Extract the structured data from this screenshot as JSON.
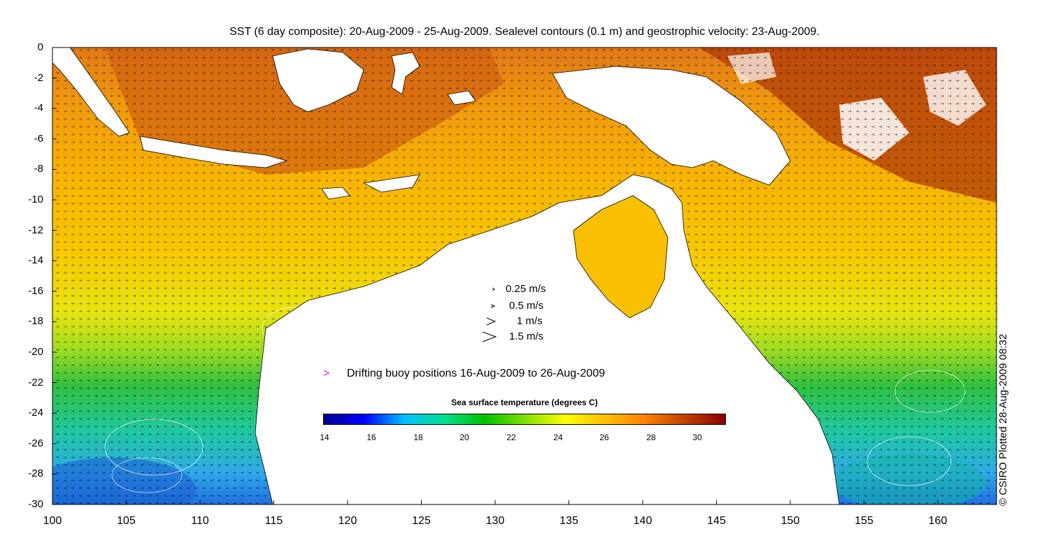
{
  "title": "SST (6 day composite): 20-Aug-2009 - 25-Aug-2009. Sealevel contours (0.1 m) and geostrophic velocity: 23-Aug-2009.",
  "axes": {
    "y_ticks": [
      "0",
      "-2",
      "-4",
      "-6",
      "-8",
      "-10",
      "-12",
      "-14",
      "-16",
      "-18",
      "-20",
      "-22",
      "-24",
      "-26",
      "-28",
      "-30"
    ],
    "x_ticks": [
      "100",
      "105",
      "110",
      "115",
      "120",
      "125",
      "130",
      "135",
      "140",
      "145",
      "150",
      "155",
      "160"
    ],
    "lat_range": [
      -30,
      0
    ],
    "lon_range": [
      100,
      164
    ]
  },
  "velocity_legend": [
    "0.25 m/s",
    "0.5 m/s",
    "1 m/s",
    "1.5 m/s"
  ],
  "buoy": {
    "marker": ">",
    "label": "Drifting buoy positions 16-Aug-2009 to 26-Aug-2009",
    "color": "#e020e0"
  },
  "colorbar": {
    "title": "Sea surface temperature (degrees C)",
    "ticks": [
      "14",
      "16",
      "18",
      "20",
      "22",
      "24",
      "26",
      "28",
      "30"
    ],
    "range": [
      14,
      31.3
    ],
    "colors": [
      "#00008f",
      "#0000ff",
      "#00bfff",
      "#00e08f",
      "#00c000",
      "#80e000",
      "#ffff00",
      "#ffbf00",
      "#ff8000",
      "#c04000",
      "#8b0000"
    ]
  },
  "credit": "© CSIRO Plotted 28-Aug-2009 08:32"
}
